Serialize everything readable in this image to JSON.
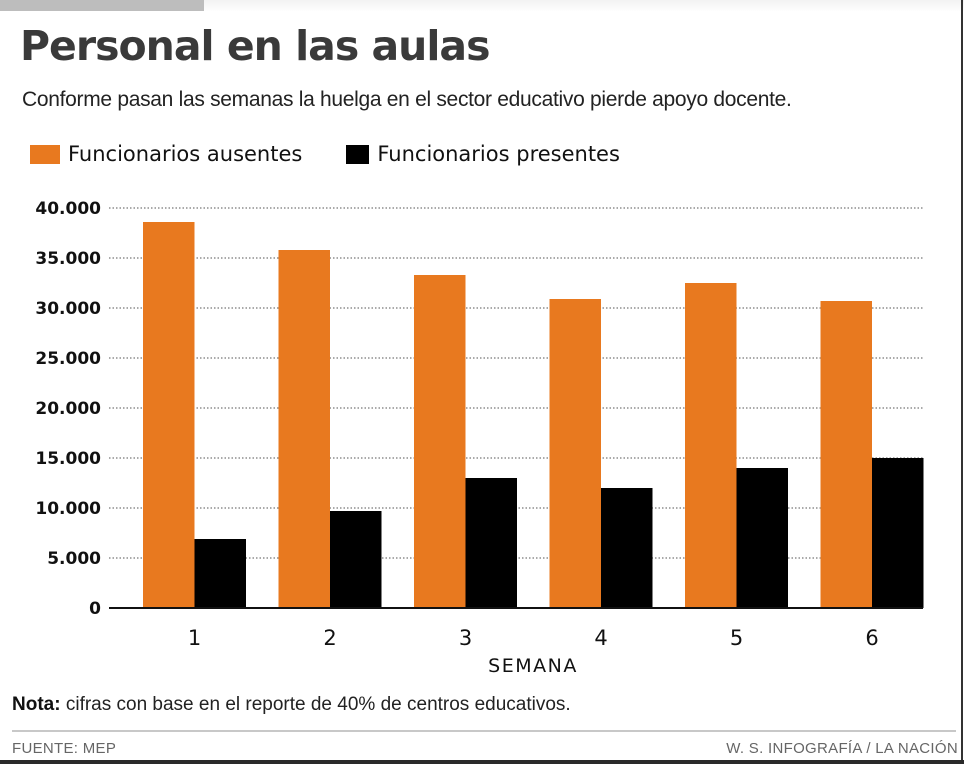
{
  "header": {
    "title": "Personal en las aulas",
    "subtitle": "Conforme pasan las semanas la huelga en el sector educativo pierde apoyo docente."
  },
  "note": {
    "label": "Nota:",
    "text": " cifras con base en el reporte de 40% de centros educativos."
  },
  "footer": {
    "source": "FUENTE: MEP",
    "credit": "W. S. INFOGRAFÍA / LA NACIÓN"
  },
  "colors": {
    "ausentes": "#E8791F",
    "presentes": "#000000",
    "grid": "#555555",
    "axis": "#111111"
  },
  "chart_data": {
    "type": "bar",
    "title": "Personal en las aulas",
    "subtitle": "Conforme pasan las semanas la huelga en el sector educativo pierde apoyo docente.",
    "xlabel": "SEMANA",
    "ylabel": "",
    "categories": [
      "1",
      "2",
      "3",
      "4",
      "5",
      "6"
    ],
    "series": [
      {
        "name": "Funcionarios ausentes",
        "color": "#E8791F",
        "values": [
          38600,
          35800,
          33300,
          30900,
          32500,
          30700
        ]
      },
      {
        "name": "Funcionarios presentes",
        "color": "#000000",
        "values": [
          6900,
          9700,
          13000,
          12000,
          14000,
          15000
        ]
      }
    ],
    "ylim": [
      0,
      40000
    ],
    "yticks": [
      0,
      5000,
      10000,
      15000,
      20000,
      25000,
      30000,
      35000,
      40000
    ],
    "ytick_labels": [
      "0",
      "5.000",
      "10.000",
      "15.000",
      "20.000",
      "25.000",
      "30.000",
      "35.000",
      "40.000"
    ],
    "grid": true,
    "grid_style": "dotted",
    "legend_position": "top-left"
  }
}
